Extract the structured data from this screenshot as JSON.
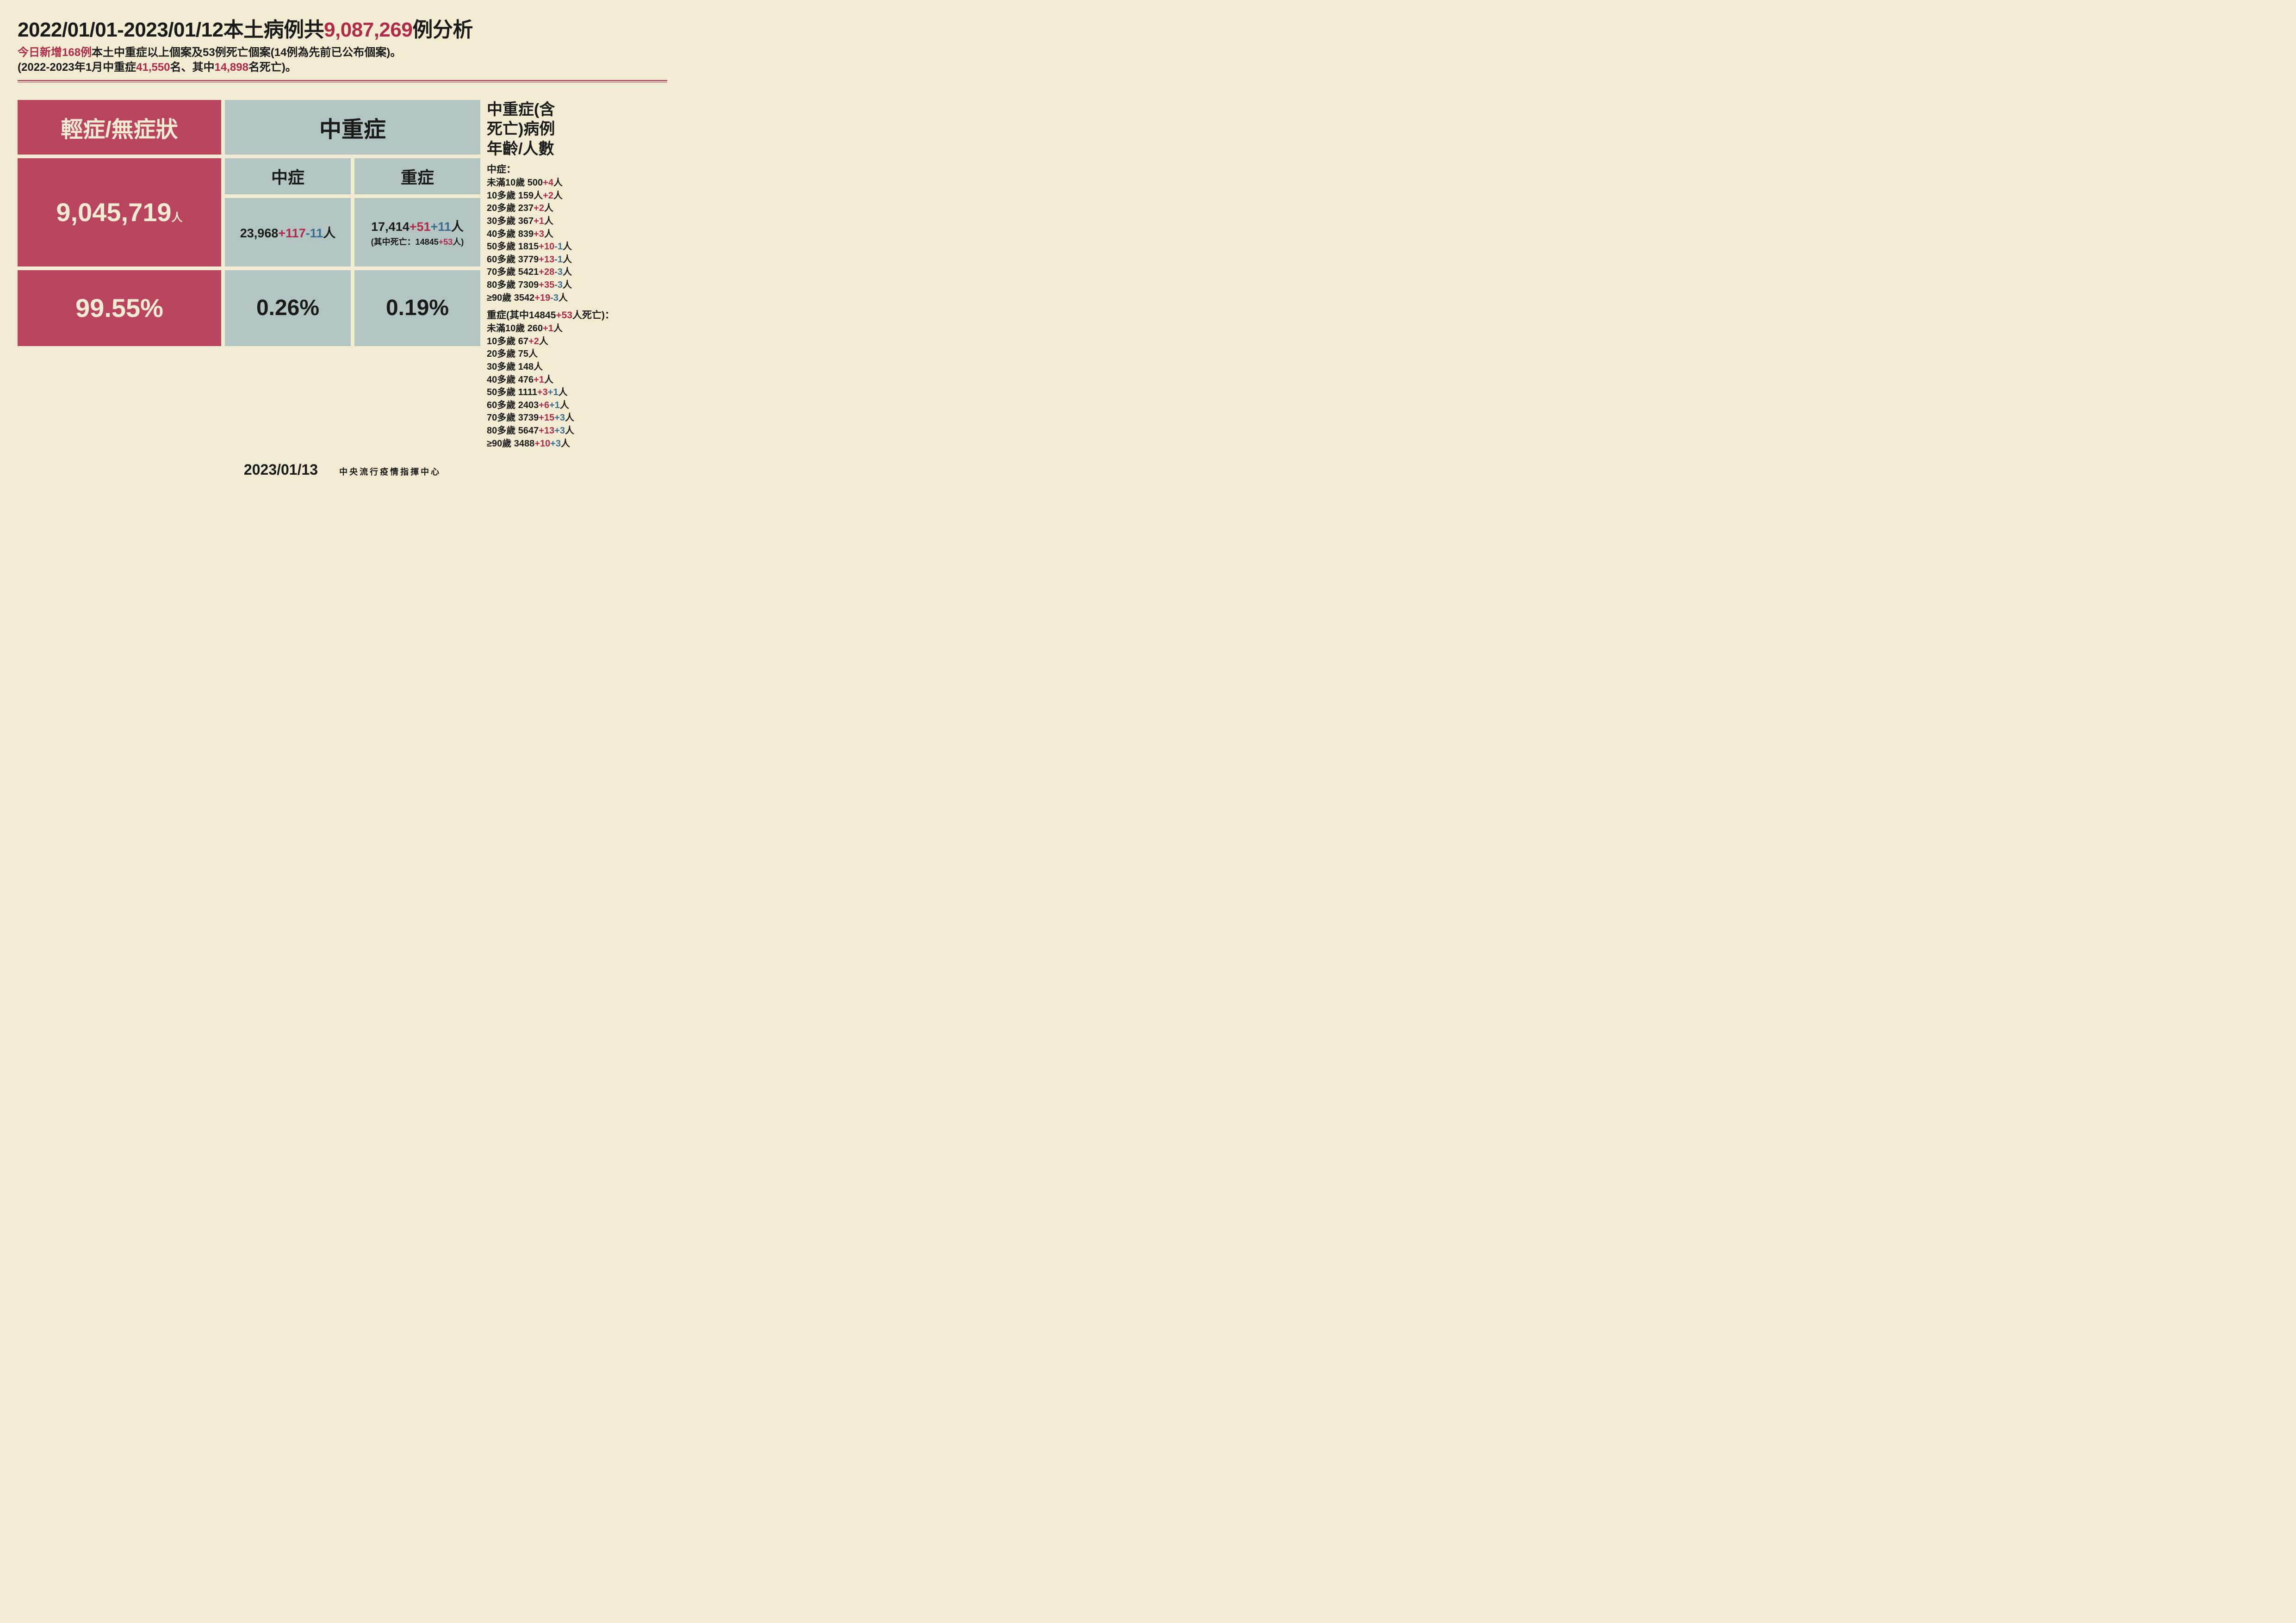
{
  "colors": {
    "background": "#f1ebd2",
    "pink_bg": "#b9445f",
    "pink_text": "#f1ebd2",
    "gray_bg": "#b2c5c3",
    "dark": "#1a1a1a",
    "red": "#b22a4a",
    "blue": "#3b6d92"
  },
  "title": {
    "pre": "2022/01/01-2023/01/12本土病例共",
    "total_cases": "9,087,269",
    "post": "例分析"
  },
  "sub": {
    "l1a": "今日新增168例",
    "l1b": "本土中重症以上個案及53例死亡個案(14例為先前已公布個案)。",
    "l2a": "(2022-2023年1月中重症",
    "l2_midsevere": "41,550",
    "l2b": "名、其中",
    "l2_deaths": "14,898",
    "l2c": "名死亡)。"
  },
  "table": {
    "mild_label": "輕症/無症狀",
    "midsevere_label": "中重症",
    "moderate_label": "中症",
    "severe_label": "重症",
    "mild_count": "9,045,719",
    "unit": "人",
    "moderate": {
      "base": "23,968",
      "red": "+117",
      "blue": "-11",
      "unit": "人"
    },
    "severe": {
      "base": "17,414",
      "red": "+51",
      "blue": "+11",
      "unit": "人",
      "note_pre": "(其中死亡：14845",
      "note_red": "+53",
      "note_post": "人)"
    },
    "mild_pct": "99.55%",
    "moderate_pct": "0.26%",
    "severe_pct": "0.19%"
  },
  "sidebar": {
    "title_l1": "中重症(含",
    "title_l2": "死亡)病例",
    "title_l3": "年齡/人數",
    "moderate_head": "中症：",
    "moderate_rows": [
      {
        "age": "未滿10歲",
        "base": "500",
        "red": "+4",
        "blue": "",
        "u": "人"
      },
      {
        "age": "10多歲",
        "base": "159人",
        "red": "+2",
        "blue": "",
        "u": "人"
      },
      {
        "age": "20多歲",
        "base": "237",
        "red": "+2",
        "blue": "",
        "u": "人"
      },
      {
        "age": "30多歲",
        "base": "367",
        "red": "+1",
        "blue": "",
        "u": "人"
      },
      {
        "age": "40多歲",
        "base": "839",
        "red": "+3",
        "blue": "",
        "u": "人"
      },
      {
        "age": "50多歲",
        "base": "1815",
        "red": "+10",
        "blue": "-1",
        "u": "人"
      },
      {
        "age": "60多歲",
        "base": "3779",
        "red": "+13",
        "blue": "-1",
        "u": "人"
      },
      {
        "age": "70多歲",
        "base": "5421",
        "red": "+28",
        "blue": "-3",
        "u": "人"
      },
      {
        "age": "80多歲",
        "base": "7309",
        "red": "+35",
        "blue": "-3",
        "u": "人"
      },
      {
        "age": "≥90歲",
        "base": "3542",
        "red": "+19",
        "blue": "-3",
        "u": "人"
      }
    ],
    "severe_head_pre": "重症(其中14845",
    "severe_head_red": "+53",
    "severe_head_post": "人死亡)：",
    "severe_rows": [
      {
        "age": "未滿10歲",
        "base": "260",
        "red": "+1",
        "blue": "",
        "u": "人"
      },
      {
        "age": "10多歲",
        "base": "67",
        "red": "+2",
        "blue": "",
        "u": "人"
      },
      {
        "age": "20多歲",
        "base": "75",
        "red": "",
        "blue": "",
        "u": "人"
      },
      {
        "age": "30多歲",
        "base": "148",
        "red": "",
        "blue": "",
        "u": "人"
      },
      {
        "age": "40多歲",
        "base": "476",
        "red": "+1",
        "blue": "",
        "u": "人"
      },
      {
        "age": "50多歲",
        "base": "1111",
        "red": "+3",
        "blue": "+1",
        "u": "人"
      },
      {
        "age": "60多歲",
        "base": "2403",
        "red": "+6",
        "blue": "+1",
        "u": "人"
      },
      {
        "age": "70多歲",
        "base": "3739",
        "red": "+15",
        "blue": "+3",
        "u": "人"
      },
      {
        "age": "80多歲",
        "base": "5647",
        "red": "+13",
        "blue": "+3",
        "u": "人"
      },
      {
        "age": "≥90歲",
        "base": "3488",
        "red": "+10",
        "blue": "+3",
        "u": "人"
      }
    ]
  },
  "footer": {
    "date": "2023/01/13",
    "org": "中央流行疫情指揮中心"
  }
}
